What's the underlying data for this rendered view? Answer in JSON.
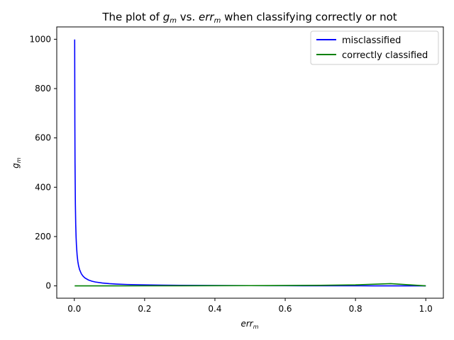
{
  "chart_data": {
    "type": "line",
    "title": {
      "prefix": "The plot of ",
      "g": "g",
      "g_sub": "m",
      "mid": " vs. ",
      "err": "err",
      "err_sub": "m",
      "suffix": " when classifying correctly or not"
    },
    "xlabel": {
      "base": "err",
      "sub": "m"
    },
    "ylabel": {
      "base": "g",
      "sub": "m"
    },
    "xlim": [
      -0.05,
      1.05
    ],
    "ylim": [
      -50,
      1050
    ],
    "xticks": [
      0.0,
      0.2,
      0.4,
      0.6,
      0.8,
      1.0
    ],
    "xtick_labels": [
      "0.0",
      "0.2",
      "0.4",
      "0.6",
      "0.8",
      "1.0"
    ],
    "yticks": [
      0,
      200,
      400,
      600,
      800,
      1000
    ],
    "ytick_labels": [
      "0",
      "200",
      "400",
      "600",
      "800",
      "1000"
    ],
    "grid": false,
    "legend_position": "top-right",
    "series": [
      {
        "name": "misclassified",
        "color": "#0000ff",
        "x": [
          0.001,
          0.0015,
          0.002,
          0.003,
          0.004,
          0.005,
          0.006,
          0.008,
          0.01,
          0.012,
          0.015,
          0.02,
          0.025,
          0.03,
          0.04,
          0.05,
          0.06,
          0.08,
          0.1,
          0.12,
          0.15,
          0.2,
          0.25,
          0.3,
          0.35,
          0.4,
          0.45,
          0.5,
          0.55,
          0.6,
          0.65,
          0.7,
          0.75,
          0.8,
          0.85,
          0.9,
          0.95,
          1.0
        ],
        "y": [
          999.0,
          665.7,
          499.0,
          332.3,
          249.0,
          199.0,
          165.7,
          124.0,
          99.0,
          82.3,
          65.7,
          49.0,
          39.0,
          32.3,
          24.0,
          19.0,
          15.7,
          11.5,
          9.0,
          7.33,
          5.67,
          4.0,
          3.0,
          2.33,
          1.86,
          1.5,
          1.22,
          1.0,
          0.82,
          0.67,
          0.54,
          0.43,
          0.33,
          0.25,
          0.18,
          0.11,
          0.05,
          0.0
        ]
      },
      {
        "name": "correctly classified",
        "color": "#008000",
        "x": [
          0.001,
          0.1,
          0.2,
          0.3,
          0.4,
          0.5,
          0.6,
          0.7,
          0.8,
          0.9,
          1.0
        ],
        "y": [
          0.001,
          0.11,
          0.25,
          0.43,
          0.67,
          1.0,
          1.5,
          2.33,
          4.0,
          9.0,
          0.0
        ]
      }
    ]
  }
}
